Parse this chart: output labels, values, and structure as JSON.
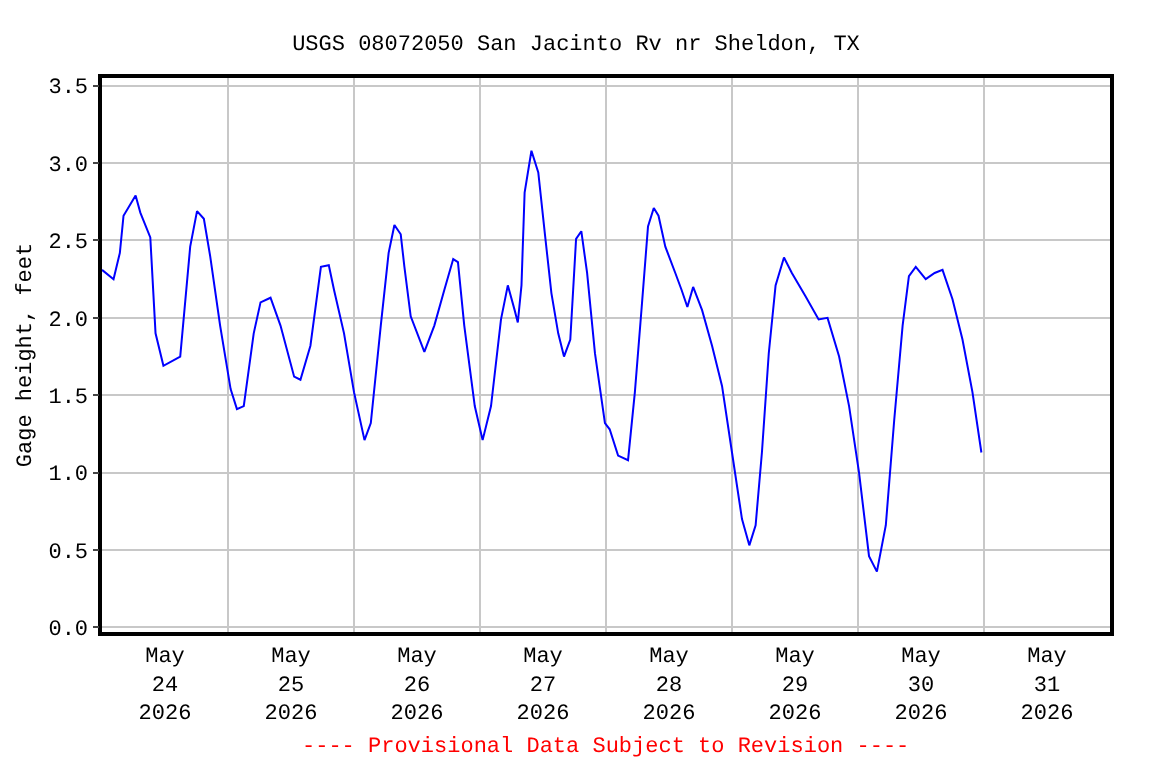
{
  "chart_data": {
    "type": "line",
    "title": "USGS 08072050 San Jacinto Rv nr Sheldon, TX",
    "ylabel": "Gage height, feet",
    "annotations": [
      "---- Provisional Data Subject to Revision ----"
    ],
    "x": [
      "2026-05-24T00:00",
      "2026-05-24T02:12",
      "2026-05-24T03:24",
      "2026-05-24T04:06",
      "2026-05-24T06:24",
      "2026-05-24T07:18",
      "2026-05-24T09:12",
      "2026-05-24T10:12",
      "2026-05-24T11:42",
      "2026-05-24T14:54",
      "2026-05-24T16:48",
      "2026-05-24T18:06",
      "2026-05-24T19:24",
      "2026-05-24T20:36",
      "2026-05-24T22:30",
      "2026-05-25T00:30",
      "2026-05-25T01:42",
      "2026-05-25T03:00",
      "2026-05-25T04:54",
      "2026-05-25T06:12",
      "2026-05-25T08:06",
      "2026-05-25T10:00",
      "2026-05-25T12:36",
      "2026-05-25T13:48",
      "2026-05-25T15:42",
      "2026-05-25T17:42",
      "2026-05-25T19:12",
      "2026-05-25T20:12",
      "2026-05-25T22:06",
      "2026-05-26T00:00",
      "2026-05-26T02:00",
      "2026-05-26T03:12",
      "2026-05-26T05:06",
      "2026-05-26T06:36",
      "2026-05-26T07:42",
      "2026-05-26T08:54",
      "2026-05-26T09:36",
      "2026-05-26T10:48",
      "2026-05-26T13:24",
      "2026-05-26T15:18",
      "2026-05-26T17:12",
      "2026-05-26T18:54",
      "2026-05-26T19:48",
      "2026-05-26T21:00",
      "2026-05-26T23:00",
      "2026-05-27T00:30",
      "2026-05-27T02:06",
      "2026-05-27T04:00",
      "2026-05-27T05:18",
      "2026-05-27T06:36",
      "2026-05-27T07:12",
      "2026-05-27T07:54",
      "2026-05-27T08:30",
      "2026-05-27T09:48",
      "2026-05-27T11:06",
      "2026-05-27T12:24",
      "2026-05-27T13:36",
      "2026-05-27T14:54",
      "2026-05-27T16:00",
      "2026-05-27T17:12",
      "2026-05-27T18:18",
      "2026-05-27T19:18",
      "2026-05-27T20:24",
      "2026-05-27T21:54",
      "2026-05-27T23:48",
      "2026-05-28T00:42",
      "2026-05-28T02:18",
      "2026-05-28T04:12",
      "2026-05-28T05:30",
      "2026-05-28T06:48",
      "2026-05-28T08:00",
      "2026-05-28T09:06",
      "2026-05-28T10:00",
      "2026-05-28T11:18",
      "2026-05-28T13:12",
      "2026-05-28T14:24",
      "2026-05-28T15:30",
      "2026-05-28T16:36",
      "2026-05-28T18:18",
      "2026-05-28T20:12",
      "2026-05-28T22:06",
      "2026-05-29T00:00",
      "2026-05-29T01:54",
      "2026-05-29T03:18",
      "2026-05-29T04:30",
      "2026-05-29T05:42",
      "2026-05-29T07:00",
      "2026-05-29T08:18",
      "2026-05-29T09:54",
      "2026-05-29T11:24",
      "2026-05-29T14:00",
      "2026-05-29T16:30",
      "2026-05-29T18:12",
      "2026-05-29T20:24",
      "2026-05-29T22:18",
      "2026-05-30T00:12",
      "2026-05-30T02:06",
      "2026-05-30T03:36",
      "2026-05-30T05:18",
      "2026-05-30T06:54",
      "2026-05-30T08:30",
      "2026-05-30T09:42",
      "2026-05-30T11:00",
      "2026-05-30T12:54",
      "2026-05-30T14:36",
      "2026-05-30T16:06",
      "2026-05-30T18:00",
      "2026-05-30T19:54",
      "2026-05-30T21:48",
      "2026-05-30T23:30"
    ],
    "series": [
      {
        "color": "#0000ff",
        "values": [
          2.31,
          2.25,
          2.42,
          2.66,
          2.79,
          2.68,
          2.52,
          1.9,
          1.69,
          1.75,
          2.46,
          2.69,
          2.64,
          2.4,
          1.95,
          1.54,
          1.41,
          1.43,
          1.9,
          2.1,
          2.13,
          1.95,
          1.62,
          1.6,
          1.82,
          2.33,
          2.34,
          2.18,
          1.9,
          1.52,
          1.21,
          1.32,
          1.95,
          2.42,
          2.6,
          2.54,
          2.33,
          2.01,
          1.78,
          1.95,
          2.18,
          2.38,
          2.36,
          1.95,
          1.43,
          1.21,
          1.43,
          1.99,
          2.21,
          2.05,
          1.97,
          2.21,
          2.81,
          3.08,
          2.94,
          2.53,
          2.16,
          1.9,
          1.75,
          1.86,
          2.51,
          2.56,
          2.29,
          1.77,
          1.32,
          1.28,
          1.11,
          1.08,
          1.52,
          2.07,
          2.59,
          2.71,
          2.66,
          2.46,
          2.29,
          2.18,
          2.07,
          2.2,
          2.05,
          1.82,
          1.56,
          1.13,
          0.7,
          0.53,
          0.66,
          1.13,
          1.77,
          2.21,
          2.39,
          2.29,
          2.14,
          1.99,
          2.0,
          1.75,
          1.43,
          1.0,
          0.46,
          0.36,
          0.66,
          1.34,
          1.95,
          2.27,
          2.33,
          2.25,
          2.29,
          2.31,
          2.12,
          1.86,
          1.52,
          1.13
        ]
      }
    ],
    "xlim": [
      "2026-05-24T00:00",
      "2026-06-01T00:00"
    ],
    "xticks": [
      {
        "value": "2026-05-24T12:00",
        "label": "May\n24\n2026"
      },
      {
        "value": "2026-05-25T00:00",
        "label": null
      },
      {
        "value": "2026-05-25T12:00",
        "label": "May\n25\n2026"
      },
      {
        "value": "2026-05-26T00:00",
        "label": null
      },
      {
        "value": "2026-05-26T12:00",
        "label": "May\n26\n2026"
      },
      {
        "value": "2026-05-27T00:00",
        "label": null
      },
      {
        "value": "2026-05-27T12:00",
        "label": "May\n27\n2026"
      },
      {
        "value": "2026-05-28T00:00",
        "label": null
      },
      {
        "value": "2026-05-28T12:00",
        "label": "May\n28\n2026"
      },
      {
        "value": "2026-05-29T00:00",
        "label": null
      },
      {
        "value": "2026-05-29T12:00",
        "label": "May\n29\n2026"
      },
      {
        "value": "2026-05-30T00:00",
        "label": null
      },
      {
        "value": "2026-05-30T12:00",
        "label": "May\n30\n2026"
      },
      {
        "value": "2026-05-31T00:00",
        "label": null
      },
      {
        "value": "2026-05-31T12:00",
        "label": "May\n31\n2026"
      }
    ],
    "ylim": [
      -0.03,
      3.55
    ],
    "yticks": [
      {
        "value": 0,
        "label": "0.0"
      },
      {
        "value": 0.5,
        "label": "0.5"
      },
      {
        "value": 1,
        "label": "1.0"
      },
      {
        "value": 1.5,
        "label": "1.5"
      },
      {
        "value": 2,
        "label": "2.0"
      },
      {
        "value": 2.5,
        "label": "2.5"
      },
      {
        "value": 3,
        "label": "3.0"
      },
      {
        "value": 3.5,
        "label": "3.5"
      }
    ],
    "grid": true,
    "legend": false,
    "marker": "none",
    "line_style": "solid"
  }
}
